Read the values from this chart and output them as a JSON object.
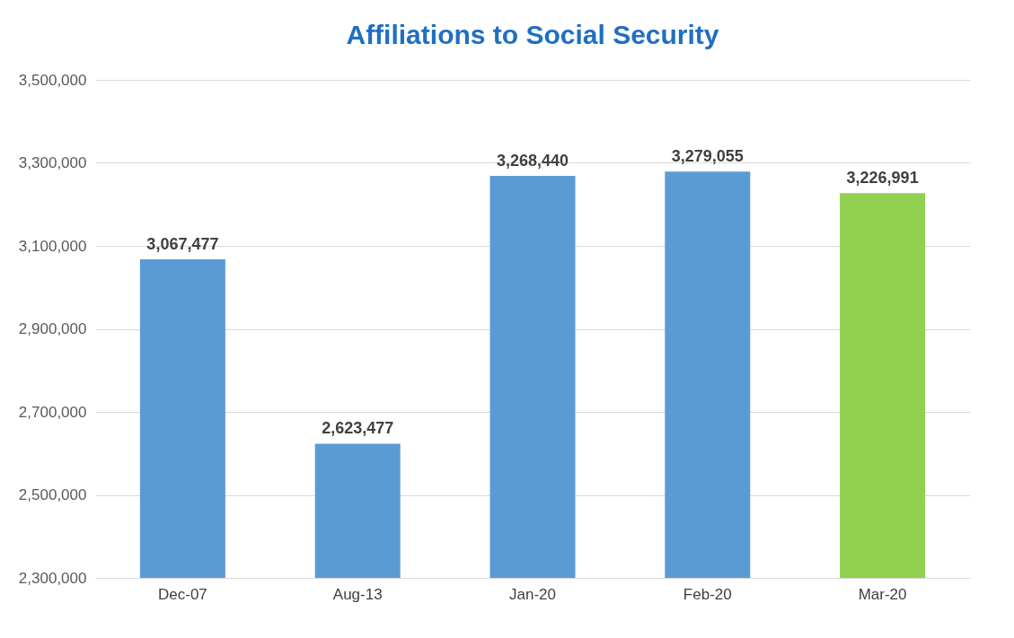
{
  "chart_data": {
    "type": "bar",
    "title": "Affiliations to Social Security",
    "categories": [
      "Dec-07",
      "Aug-13",
      "Jan-20",
      "Feb-20",
      "Mar-20"
    ],
    "values": [
      3067477,
      2623477,
      3268440,
      3279055,
      3226991
    ],
    "value_labels": [
      "3,067,477",
      "2,623,477",
      "3,268,440",
      "3,279,055",
      "3,226,991"
    ],
    "colors": [
      "#5b9bd5",
      "#5b9bd5",
      "#5b9bd5",
      "#5b9bd5",
      "#92d050"
    ],
    "ylim": [
      2300000,
      3500000
    ],
    "yticks": [
      {
        "value": 2300000,
        "label": "2,300,000"
      },
      {
        "value": 2500000,
        "label": "2,500,000"
      },
      {
        "value": 2700000,
        "label": "2,700,000"
      },
      {
        "value": 2900000,
        "label": "2,900,000"
      },
      {
        "value": 3100000,
        "label": "3,100,000"
      },
      {
        "value": 3300000,
        "label": "3,300,000"
      },
      {
        "value": 3500000,
        "label": "3,500,000"
      }
    ],
    "grid": "y"
  }
}
